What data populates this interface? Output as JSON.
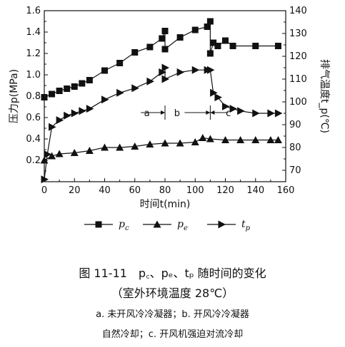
{
  "chart_data": {
    "type": "line",
    "xlabel": "时间t(min)",
    "ylabel_left": "压力p(MPa)",
    "ylabel_right": "排气温度t_p(℃)",
    "x_ticks": [
      "0",
      "20",
      "40",
      "60",
      "80",
      "100",
      "120",
      "140",
      "160"
    ],
    "y_left_ticks": [
      "0.2",
      "0.4",
      "0.6",
      "0.8",
      "1.0",
      "1.2",
      "1.4",
      "1.6"
    ],
    "y_right_ticks": [
      "70",
      "80",
      "90",
      "100",
      "110",
      "120",
      "130",
      "140"
    ],
    "xlim": [
      0,
      160
    ],
    "ylim_left": [
      0,
      1.6
    ],
    "ylim_right": [
      65,
      140
    ],
    "series": [
      {
        "name": "p_c",
        "axis": "left",
        "marker": "square",
        "x": [
          0,
          5,
          10,
          15,
          20,
          25,
          30,
          40,
          50,
          60,
          70,
          78,
          80,
          80,
          90,
          100,
          108,
          110,
          110,
          112,
          115,
          120,
          125,
          140,
          155
        ],
        "y": [
          0.79,
          0.82,
          0.85,
          0.87,
          0.89,
          0.92,
          0.95,
          1.04,
          1.11,
          1.21,
          1.26,
          1.34,
          1.41,
          1.24,
          1.35,
          1.42,
          1.45,
          1.5,
          1.2,
          1.3,
          1.27,
          1.32,
          1.27,
          1.27,
          1.27
        ]
      },
      {
        "name": "p_e",
        "axis": "left",
        "marker": "triangle-up",
        "x": [
          0,
          5,
          10,
          20,
          30,
          40,
          50,
          60,
          70,
          80,
          90,
          100,
          105,
          110,
          120,
          130,
          140,
          150,
          155
        ],
        "y": [
          0.2,
          0.24,
          0.26,
          0.27,
          0.29,
          0.32,
          0.32,
          0.33,
          0.35,
          0.36,
          0.36,
          0.37,
          0.41,
          0.4,
          0.39,
          0.39,
          0.39,
          0.39,
          0.39
        ]
      },
      {
        "name": "t_p",
        "axis": "right",
        "marker": "triangle-right",
        "x": [
          0,
          2,
          5,
          10,
          15,
          20,
          25,
          30,
          40,
          50,
          60,
          70,
          78,
          80,
          80,
          90,
          100,
          108,
          110,
          112,
          115,
          120,
          125,
          130,
          140,
          150,
          155
        ],
        "y": [
          66,
          77,
          89,
          92,
          94,
          95,
          96,
          97,
          101,
          104,
          106,
          109,
          113,
          115,
          110,
          113,
          114,
          114,
          114,
          104,
          102,
          98,
          97,
          96,
          95,
          95,
          95
        ]
      }
    ],
    "annotations": [
      {
        "label": "a"
      },
      {
        "label": "b"
      },
      {
        "label": "c"
      }
    ],
    "legend": [
      {
        "marker": "square",
        "text": "p_c"
      },
      {
        "marker": "triangle-up",
        "text": "p_e"
      },
      {
        "marker": "triangle-right",
        "text": "t_p"
      }
    ]
  },
  "caption": {
    "line1": "图 11-11　p꜀、pₑ、tₚ 随时间的变化",
    "line2": "（室外环境温度 28℃）",
    "line3": "a. 未开风冷冷凝器；b. 开风冷冷凝器",
    "line4": "自然冷却；c. 开风机强迫对流冷却"
  }
}
